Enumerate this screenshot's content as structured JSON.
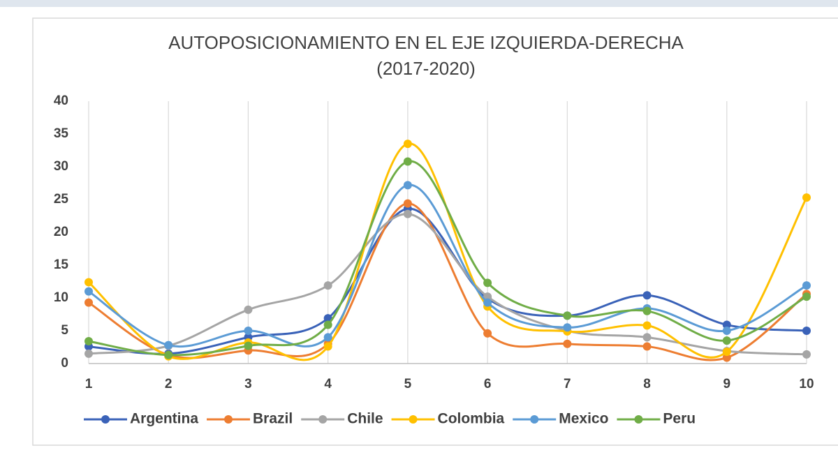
{
  "chart_data": {
    "type": "line",
    "title": "AUTOPOSICIONAMIENTO EN EL EJE IZQUIERDA-DERECHA",
    "subtitle": "(2017-2020)",
    "x": [
      1,
      2,
      3,
      4,
      5,
      6,
      7,
      8,
      9,
      10
    ],
    "series": [
      {
        "name": "Argentina",
        "color": "#3a62b8",
        "values": [
          2.6,
          1.5,
          4.0,
          6.9,
          23.6,
          9.9,
          7.3,
          10.4,
          5.9,
          5.0
        ]
      },
      {
        "name": "Brazil",
        "color": "#ed7d31",
        "values": [
          9.3,
          1.3,
          2.0,
          3.0,
          24.4,
          4.6,
          3.0,
          2.6,
          0.9,
          10.6
        ]
      },
      {
        "name": "Chile",
        "color": "#a5a5a5",
        "values": [
          1.5,
          2.7,
          8.2,
          11.9,
          22.8,
          10.2,
          5.0,
          4.0,
          1.9,
          1.4
        ]
      },
      {
        "name": "Colombia",
        "color": "#ffc000",
        "values": [
          12.4,
          1.1,
          3.2,
          2.6,
          33.5,
          8.7,
          4.9,
          5.8,
          1.8,
          25.3
        ]
      },
      {
        "name": "Mexico",
        "color": "#5b9bd5",
        "values": [
          11.0,
          2.8,
          5.0,
          4.0,
          27.2,
          9.3,
          5.5,
          8.4,
          5.0,
          11.9
        ]
      },
      {
        "name": "Peru",
        "color": "#70ad47",
        "values": [
          3.4,
          1.3,
          2.7,
          5.9,
          30.8,
          12.3,
          7.3,
          8.0,
          3.5,
          10.2
        ]
      }
    ],
    "xlim": [
      1,
      10
    ],
    "xticks": [
      1,
      2,
      3,
      4,
      5,
      6,
      7,
      8,
      9,
      10
    ],
    "ylim": [
      0,
      40
    ],
    "yticks": [
      0,
      5,
      10,
      15,
      20,
      25,
      30,
      35,
      40
    ],
    "xgrid": true,
    "ygrid": false,
    "smooth": true,
    "legend": "bottom"
  }
}
